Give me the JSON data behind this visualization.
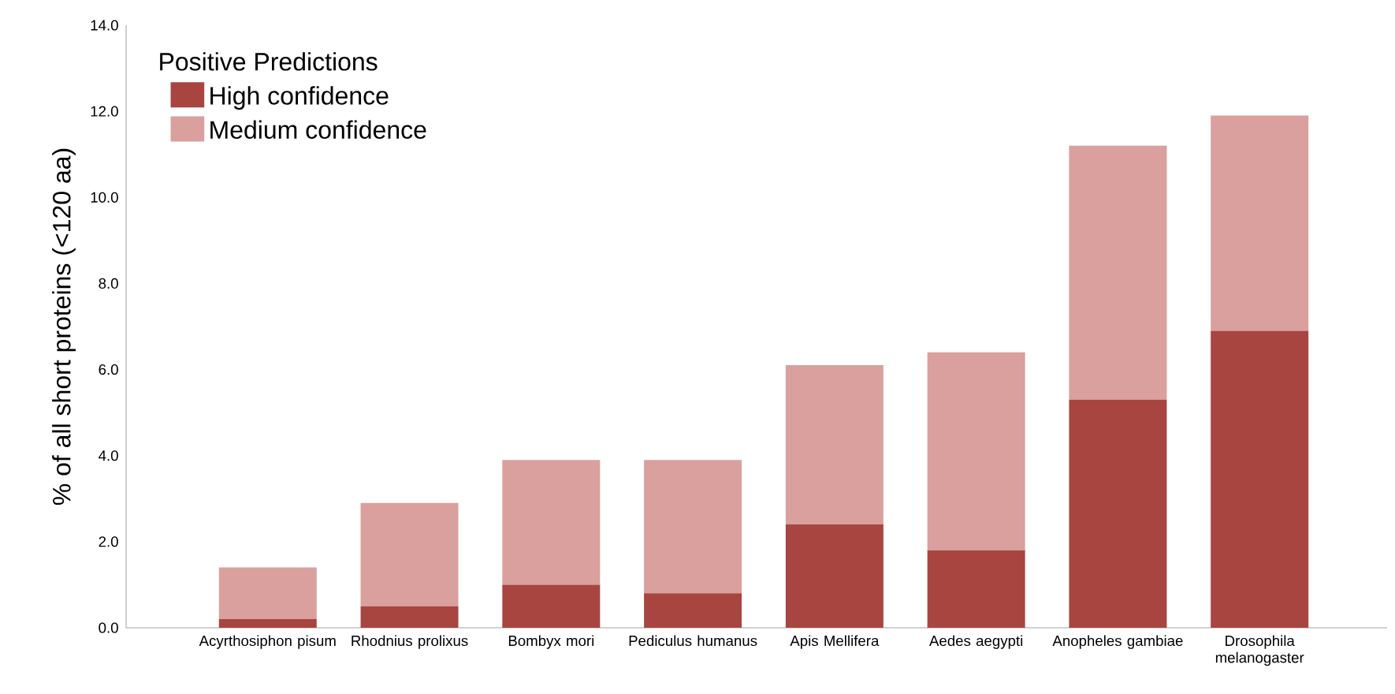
{
  "chart_data": {
    "type": "bar",
    "stacked": true,
    "ylabel": "% of all short proteins (<120 aa)",
    "legend_title": "Positive Predictions",
    "categories": [
      "Acyrthosiphon pisum",
      "Rhodnius prolixus",
      "Bombyx mori",
      "Pediculus humanus",
      "Apis Mellifera",
      "Aedes aegypti",
      "Anopheles gambiae",
      "Drosophila melanogaster"
    ],
    "series": [
      {
        "name": "High confidence",
        "color": "#a84540",
        "values": [
          0.2,
          0.5,
          1.0,
          0.8,
          2.4,
          1.8,
          5.3,
          6.9
        ]
      },
      {
        "name": "Medium confidence",
        "color": "#d9a09e",
        "values": [
          1.2,
          2.4,
          2.9,
          3.1,
          3.7,
          4.6,
          5.9,
          5.0
        ]
      }
    ],
    "ylim": [
      0,
      14
    ],
    "yticks": [
      {
        "value": 0,
        "label": "0.0"
      },
      {
        "value": 2,
        "label": "2.0"
      },
      {
        "value": 4,
        "label": "4.0"
      },
      {
        "value": 6,
        "label": "6.0"
      },
      {
        "value": 8,
        "label": "8.0"
      },
      {
        "value": 10,
        "label": "10.0"
      },
      {
        "value": 12,
        "label": "12.0"
      },
      {
        "value": 14,
        "label": "14.0"
      }
    ],
    "grid": false,
    "legend": "top left"
  }
}
